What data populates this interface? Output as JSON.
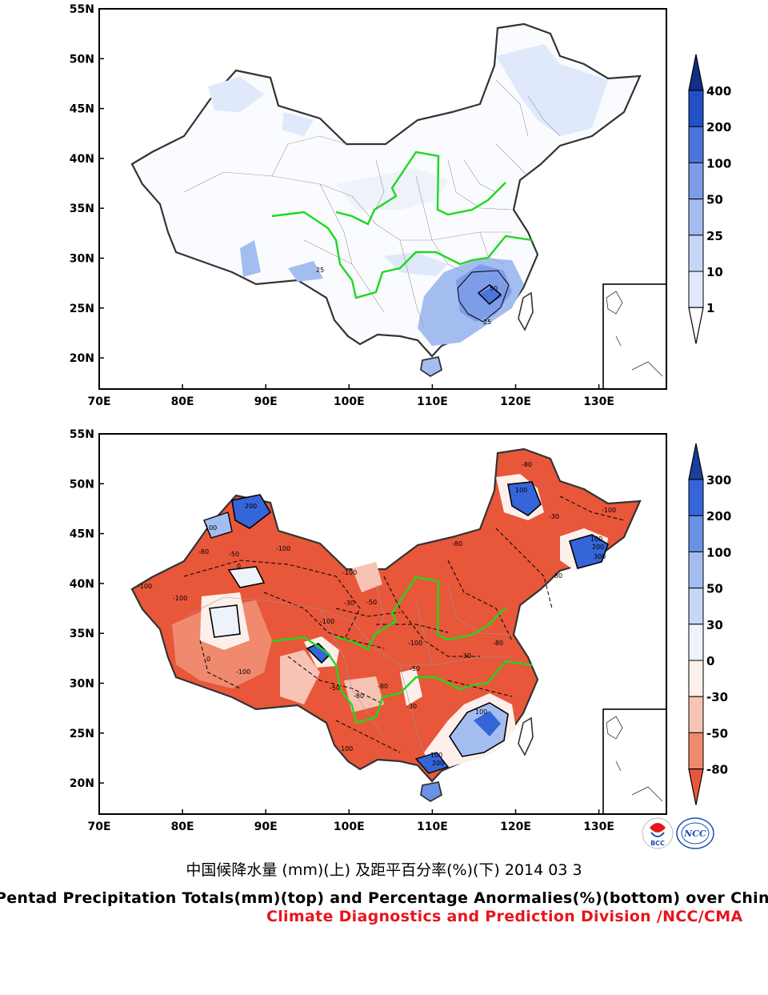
{
  "top_map": {
    "lat_labels": [
      "55N",
      "50N",
      "45N",
      "40N",
      "35N",
      "30N",
      "25N",
      "20N"
    ],
    "lon_labels": [
      "70E",
      "80E",
      "90E",
      "100E",
      "110E",
      "120E",
      "130E"
    ],
    "contour_labels": [
      "25",
      "50",
      "25"
    ],
    "colorbar": {
      "levels": [
        "400",
        "200",
        "100",
        "50",
        "25",
        "10",
        "1"
      ],
      "colors": [
        "#ffffff",
        "#dfe9fb",
        "#c5d6f6",
        "#a4bdf0",
        "#7e9de9",
        "#4a76dc",
        "#2250c7",
        "#102f87"
      ]
    }
  },
  "bottom_map": {
    "lat_labels": [
      "55N",
      "50N",
      "45N",
      "40N",
      "35N",
      "30N",
      "25N",
      "20N"
    ],
    "lon_labels": [
      "70E",
      "80E",
      "90E",
      "100E",
      "110E",
      "120E",
      "130E"
    ],
    "contour_labels": [
      "-100",
      "-80",
      "-50",
      "-30",
      "0",
      "100",
      "200",
      "300"
    ],
    "colorbar": {
      "levels": [
        "300",
        "200",
        "100",
        "50",
        "30",
        "0",
        "-30",
        "-50",
        "-80"
      ],
      "colors": [
        "#e8573a",
        "#ef8a6f",
        "#f7c3b4",
        "#fdf0eb",
        "#eef3fb",
        "#c5d6f6",
        "#a4bdf0",
        "#6a92e5",
        "#3565d8",
        "#183f9c"
      ]
    }
  },
  "logos": [
    "BCC",
    "NCC"
  ],
  "caption": {
    "chinese": "中国候降水量 (mm)(上) 及距平百分率(%)(下) 2014 03 3",
    "english": "Pentad Precipitation Totals(mm)(top) and Percentage Anormalies(%)(bottom) over China",
    "credit": "Climate Diagnostics and Prediction Division /NCC/CMA"
  }
}
